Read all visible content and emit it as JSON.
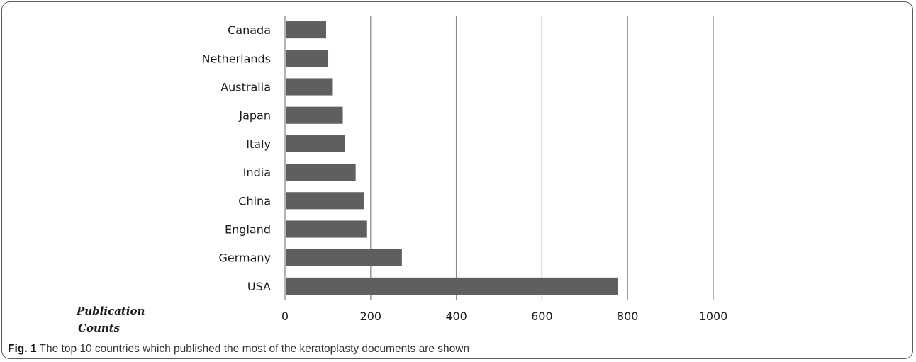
{
  "chart_data": {
    "type": "bar",
    "orientation": "horizontal",
    "categories": [
      "Canada",
      "Netherlands",
      "Australia",
      "Japan",
      "Italy",
      "India",
      "China",
      "England",
      "Germany",
      "USA"
    ],
    "values": [
      96,
      101,
      110,
      135,
      140,
      165,
      185,
      190,
      273,
      778
    ],
    "xlabel": [
      "Publication",
      "Counts"
    ],
    "xlim": [
      0,
      1000
    ],
    "xticks": [
      0,
      200,
      400,
      600,
      800,
      1000
    ],
    "grid": "vertical",
    "bar_color": "#5f5f5f",
    "grid_color": "#8a8a8a"
  },
  "caption": {
    "label": "Fig. 1",
    "text": " The top 10 countries which published the most of the keratoplasty documents are shown"
  }
}
